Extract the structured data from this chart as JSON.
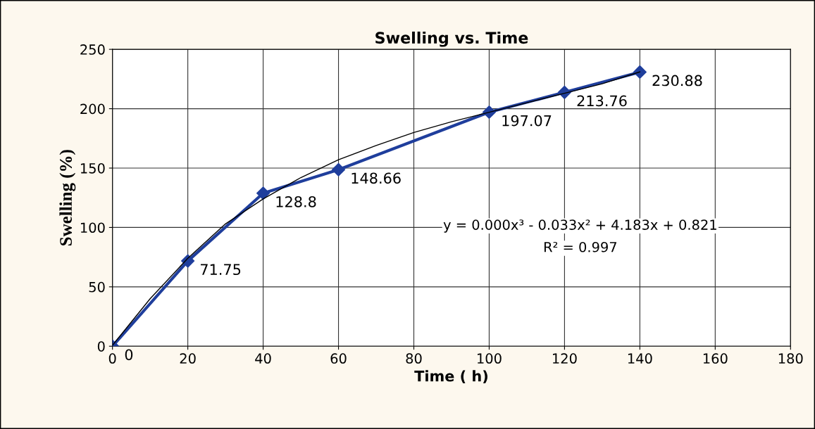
{
  "chart_data": {
    "type": "line",
    "title": "Swelling vs. Time",
    "xlabel": "Time ( h)",
    "ylabel": "Swelling (%)",
    "xlim": [
      0,
      180
    ],
    "xticks": [
      0,
      20,
      40,
      60,
      80,
      100,
      120,
      140,
      160,
      180
    ],
    "ylim": [
      0,
      250
    ],
    "yticks": [
      0,
      50,
      100,
      150,
      200,
      250
    ],
    "grid": true,
    "marker": "diamond",
    "line_style": "solid",
    "series": [
      {
        "color": "#1f3e9c",
        "x": [
          0,
          20,
          40,
          60,
          100,
          120,
          140
        ],
        "values": [
          0,
          71.75,
          128.8,
          148.66,
          197.07,
          213.76,
          230.88
        ],
        "value_labels": [
          "0",
          "71.75",
          "128.8",
          "148.66",
          "197.07",
          "213.76",
          "230.88"
        ]
      },
      {
        "type": "line",
        "color": "#000000",
        "marker": "none",
        "x": [
          0,
          10,
          20,
          30,
          40,
          50,
          60,
          70,
          80,
          90,
          100,
          110,
          120,
          130,
          140
        ],
        "values": [
          0.8,
          40,
          74,
          103,
          124,
          142,
          157,
          169,
          180,
          189,
          197,
          205,
          213,
          221,
          231
        ]
      }
    ],
    "annotations": [
      "y = 0.000x³ - 0.033x² + 4.183x + 0.821",
      "R² = 0.997"
    ]
  }
}
